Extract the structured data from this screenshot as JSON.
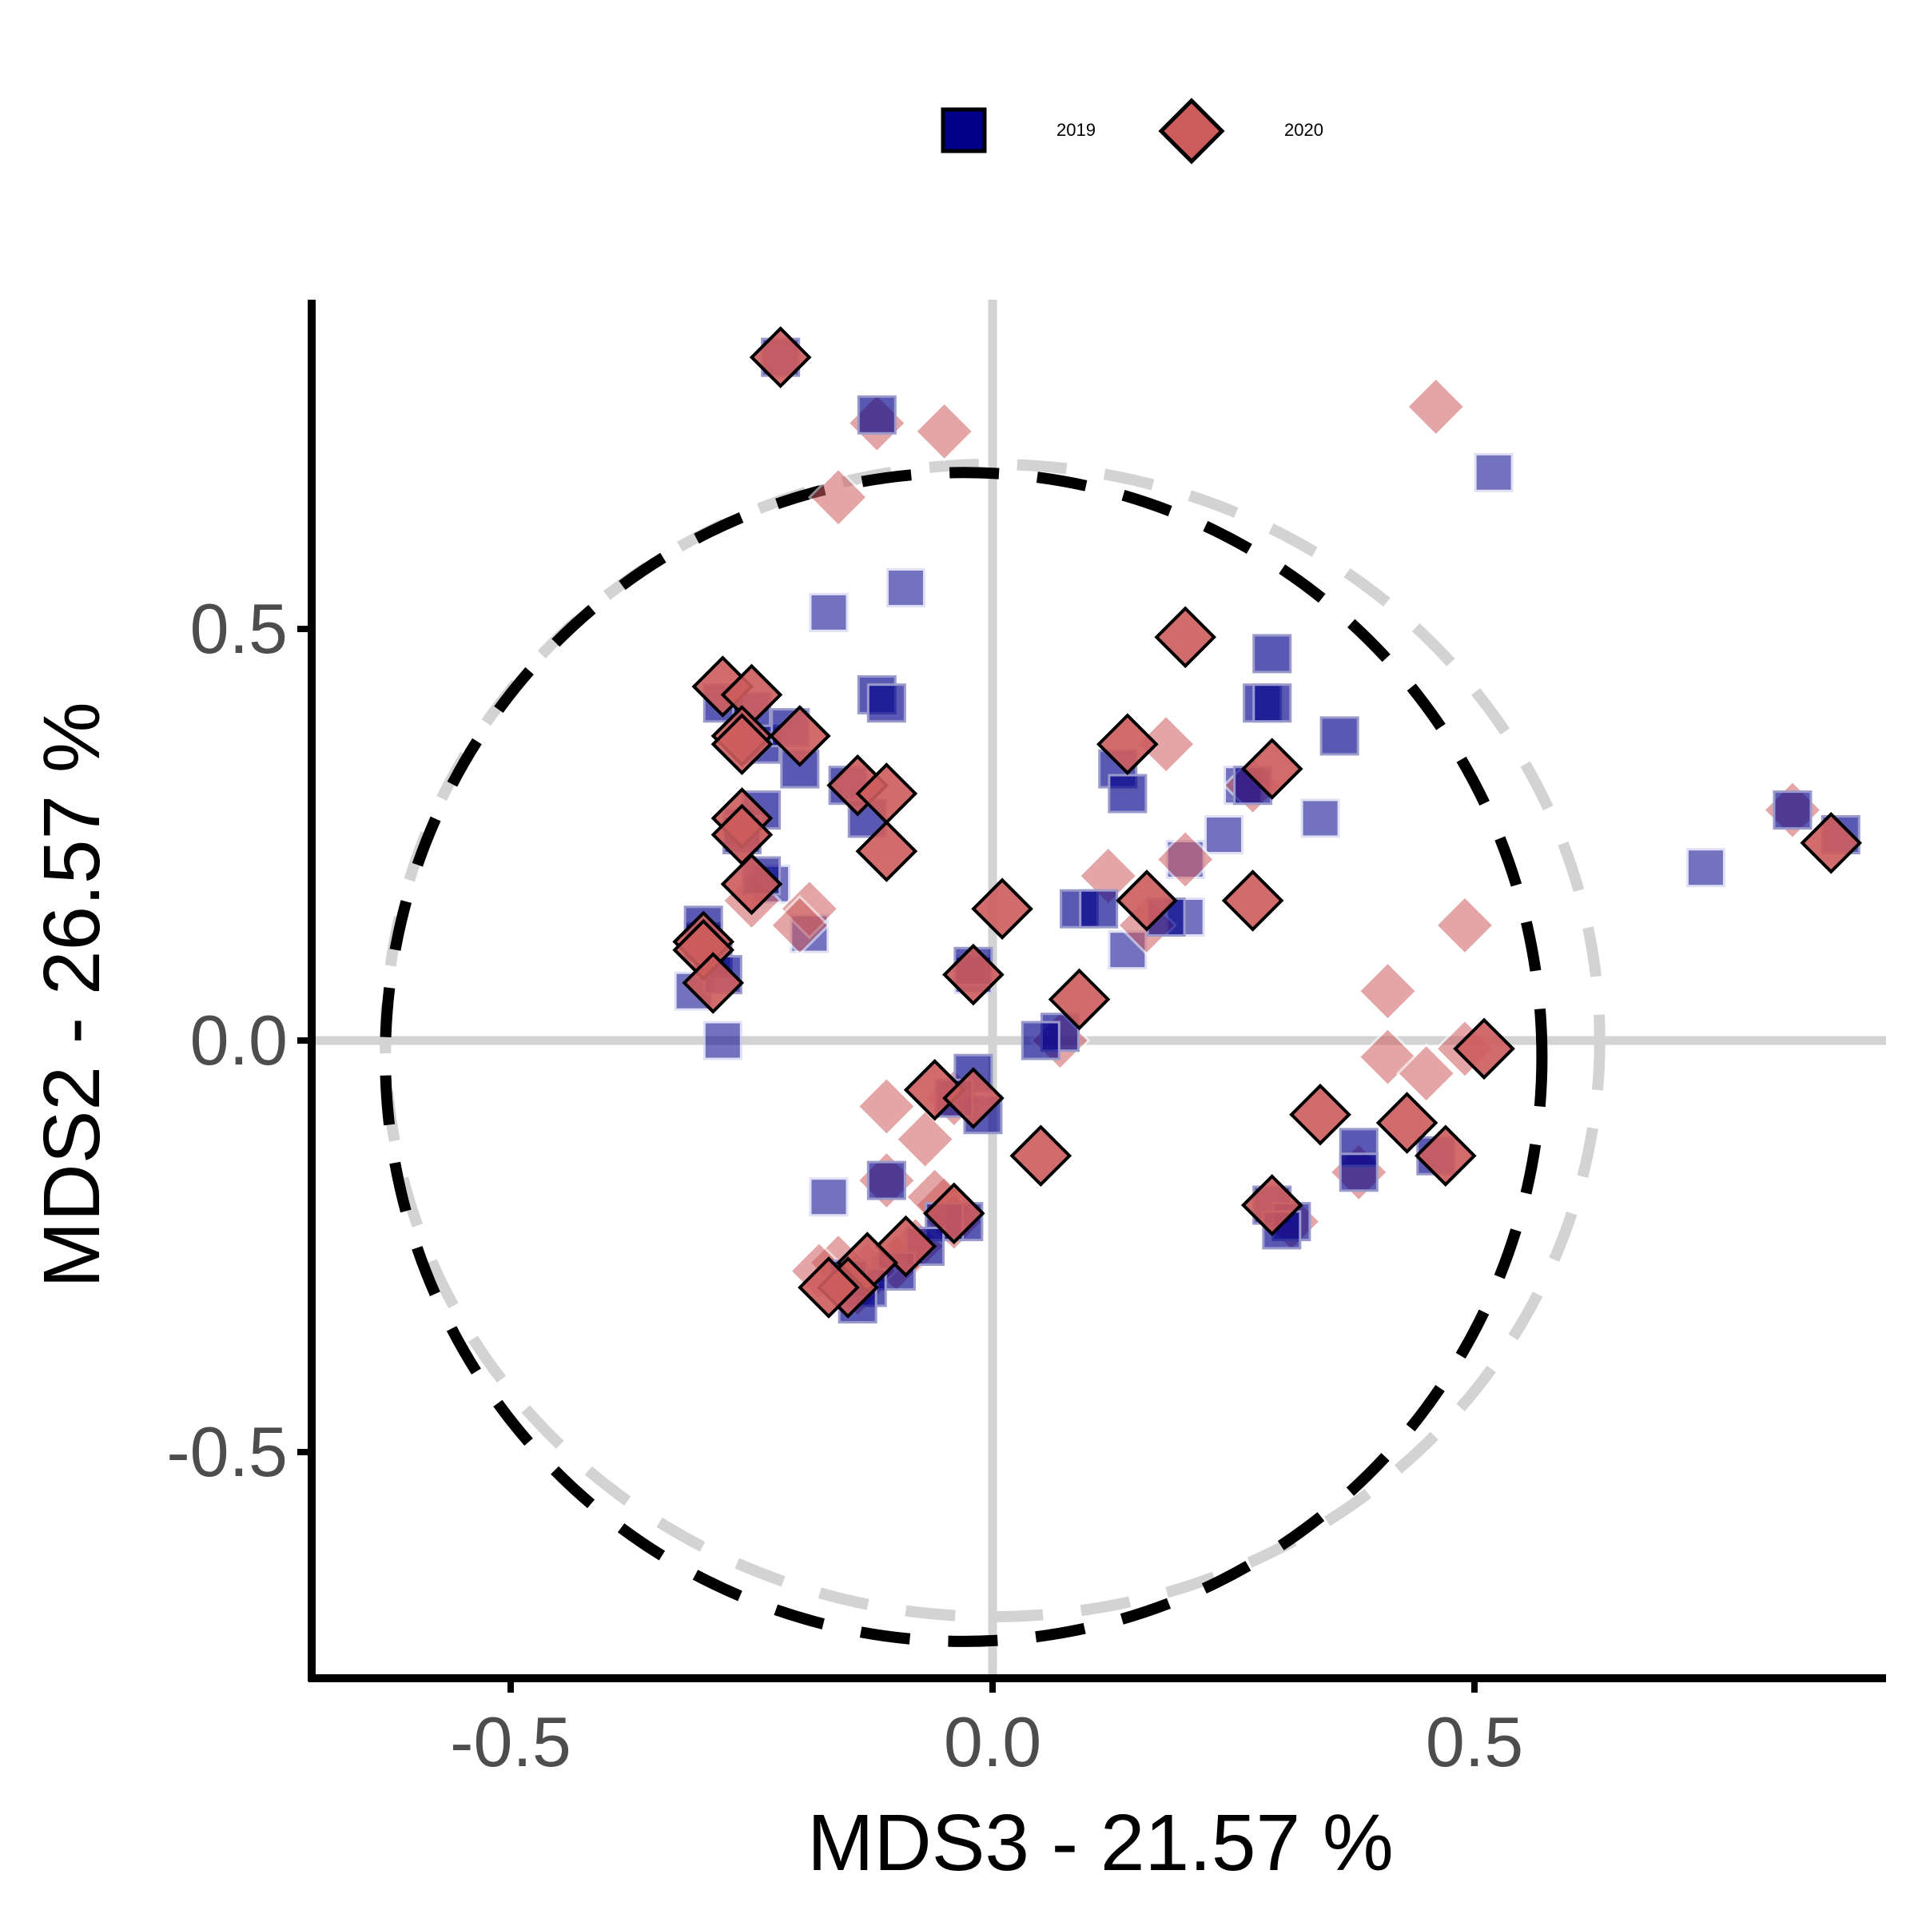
{
  "chart_data": {
    "type": "scatter",
    "title": "",
    "xlabel": "MDS3 - 21.57 %",
    "ylabel": "MDS2 - 26.57 %",
    "xlim": [
      -0.71,
      0.93
    ],
    "ylim": [
      -0.78,
      0.9
    ],
    "xticks": [
      -0.5,
      0.0,
      0.5
    ],
    "yticks": [
      -0.5,
      0.0,
      0.5
    ],
    "xtick_labels": [
      "-0.5",
      "0.0",
      "0.5"
    ],
    "ytick_labels": [
      "-0.5",
      "0.0",
      "0.5"
    ],
    "grid": false,
    "reference_lines": {
      "x": 0,
      "y": 0,
      "color": "#d3d3d3"
    },
    "legend": {
      "position": "top",
      "items": [
        {
          "label": "2019",
          "shape": "square",
          "color": "#00008b"
        },
        {
          "label": "2020",
          "shape": "diamond",
          "color": "#cd5c5c"
        }
      ]
    },
    "ellipses": [
      {
        "series": "2019",
        "cx": 0.0,
        "cy": 0.0,
        "rx": 0.63,
        "ry": 0.7,
        "color": "#d3d3d3",
        "style": "dashed"
      },
      {
        "series": "2020",
        "cx": -0.03,
        "cy": -0.02,
        "rx": 0.6,
        "ry": 0.71,
        "color": "#000000",
        "style": "dashed"
      }
    ],
    "series": [
      {
        "name": "2019",
        "shape": "square",
        "color": "#00008b",
        "points_outlined": [
          [
            -0.22,
            0.83
          ],
          [
            -0.12,
            0.76
          ],
          [
            -0.3,
            0.12
          ],
          [
            -0.29,
            0.1
          ],
          [
            -0.3,
            0.14
          ],
          [
            -0.28,
            0.08
          ],
          [
            -0.28,
            0.41
          ],
          [
            -0.25,
            0.4
          ],
          [
            -0.24,
            0.36
          ],
          [
            -0.21,
            0.38
          ],
          [
            -0.2,
            0.33
          ],
          [
            -0.15,
            0.31
          ],
          [
            -0.13,
            0.27
          ],
          [
            -0.24,
            0.28
          ],
          [
            -0.26,
            0.25
          ],
          [
            -0.24,
            0.2
          ],
          [
            -0.12,
            0.42
          ],
          [
            -0.11,
            0.41
          ],
          [
            0.09,
            0.16
          ],
          [
            0.11,
            0.16
          ],
          [
            0.13,
            0.33
          ],
          [
            0.14,
            0.3
          ],
          [
            0.18,
            0.15
          ],
          [
            0.28,
            0.41
          ],
          [
            0.29,
            0.41
          ],
          [
            0.29,
            0.47
          ],
          [
            0.36,
            0.37
          ],
          [
            -0.02,
            0.09
          ],
          [
            0.07,
            0.01
          ],
          [
            0.05,
            0.0
          ],
          [
            -0.02,
            -0.04
          ],
          [
            -0.01,
            -0.09
          ],
          [
            -0.04,
            -0.07
          ],
          [
            -0.11,
            -0.17
          ],
          [
            -0.03,
            -0.22
          ],
          [
            -0.05,
            -0.22
          ],
          [
            -0.07,
            -0.25
          ],
          [
            -0.1,
            -0.28
          ],
          [
            -0.13,
            -0.3
          ],
          [
            -0.15,
            -0.29
          ],
          [
            -0.14,
            -0.32
          ],
          [
            0.29,
            -0.2
          ],
          [
            0.31,
            -0.22
          ],
          [
            0.3,
            -0.23
          ],
          [
            0.38,
            -0.13
          ],
          [
            0.38,
            -0.16
          ],
          [
            0.46,
            -0.14
          ],
          [
            0.83,
            0.28
          ],
          [
            0.88,
            0.25
          ],
          [
            0.27,
            0.31
          ]
        ],
        "points_faded": [
          [
            -0.31,
            0.06
          ],
          [
            -0.28,
            0.0
          ],
          [
            -0.26,
            0.26
          ],
          [
            -0.23,
            0.19
          ],
          [
            -0.19,
            0.13
          ],
          [
            -0.17,
            0.52
          ],
          [
            -0.09,
            0.55
          ],
          [
            0.14,
            0.11
          ],
          [
            0.2,
            0.15
          ],
          [
            0.24,
            0.25
          ],
          [
            0.34,
            0.27
          ],
          [
            0.26,
            0.31
          ],
          [
            0.52,
            0.69
          ],
          [
            0.74,
            0.21
          ],
          [
            -0.02,
            0.08
          ],
          [
            -0.17,
            -0.19
          ],
          [
            0.2,
            0.22
          ]
        ]
      },
      {
        "name": "2020",
        "shape": "diamond",
        "color": "#cd5c5c",
        "points_outlined": [
          [
            -0.22,
            0.83
          ],
          [
            -0.28,
            0.43
          ],
          [
            -0.25,
            0.42
          ],
          [
            -0.26,
            0.37
          ],
          [
            -0.26,
            0.36
          ],
          [
            -0.2,
            0.37
          ],
          [
            -0.14,
            0.31
          ],
          [
            -0.11,
            0.3
          ],
          [
            -0.11,
            0.23
          ],
          [
            -0.26,
            0.27
          ],
          [
            -0.26,
            0.25
          ],
          [
            -0.25,
            0.19
          ],
          [
            -0.3,
            0.12
          ],
          [
            -0.3,
            0.11
          ],
          [
            -0.29,
            0.07
          ],
          [
            0.01,
            0.16
          ],
          [
            -0.02,
            0.08
          ],
          [
            0.09,
            0.05
          ],
          [
            0.14,
            0.36
          ],
          [
            0.16,
            0.17
          ],
          [
            0.27,
            0.17
          ],
          [
            0.29,
            0.33
          ],
          [
            0.2,
            0.49
          ],
          [
            -0.06,
            -0.06
          ],
          [
            -0.02,
            -0.07
          ],
          [
            0.05,
            -0.14
          ],
          [
            -0.04,
            -0.21
          ],
          [
            -0.09,
            -0.25
          ],
          [
            -0.13,
            -0.27
          ],
          [
            -0.15,
            -0.3
          ],
          [
            -0.17,
            -0.3
          ],
          [
            0.29,
            -0.2
          ],
          [
            0.34,
            -0.09
          ],
          [
            0.43,
            -0.1
          ],
          [
            0.47,
            -0.14
          ],
          [
            0.51,
            -0.01
          ],
          [
            0.87,
            0.24
          ]
        ],
        "points_faded": [
          [
            -0.05,
            0.74
          ],
          [
            -0.12,
            0.75
          ],
          [
            -0.16,
            0.66
          ],
          [
            0.46,
            0.77
          ],
          [
            0.18,
            0.36
          ],
          [
            0.2,
            0.22
          ],
          [
            0.12,
            0.2
          ],
          [
            0.16,
            0.14
          ],
          [
            0.27,
            0.31
          ],
          [
            0.49,
            0.14
          ],
          [
            0.41,
            0.06
          ],
          [
            0.41,
            -0.02
          ],
          [
            0.45,
            -0.04
          ],
          [
            0.49,
            -0.01
          ],
          [
            0.38,
            -0.16
          ],
          [
            0.07,
            0.0
          ],
          [
            -0.11,
            -0.08
          ],
          [
            -0.07,
            -0.12
          ],
          [
            -0.04,
            -0.07
          ],
          [
            -0.11,
            -0.17
          ],
          [
            -0.05,
            -0.2
          ],
          [
            -0.06,
            -0.19
          ],
          [
            -0.04,
            -0.22
          ],
          [
            -0.08,
            -0.25
          ],
          [
            -0.1,
            -0.27
          ],
          [
            -0.13,
            -0.28
          ],
          [
            -0.14,
            -0.3
          ],
          [
            -0.16,
            -0.27
          ],
          [
            -0.18,
            -0.28
          ],
          [
            -0.19,
            0.16
          ],
          [
            -0.2,
            0.14
          ],
          [
            -0.25,
            0.17
          ],
          [
            -0.26,
            0.25
          ],
          [
            0.31,
            -0.22
          ],
          [
            0.83,
            0.28
          ]
        ]
      }
    ]
  }
}
